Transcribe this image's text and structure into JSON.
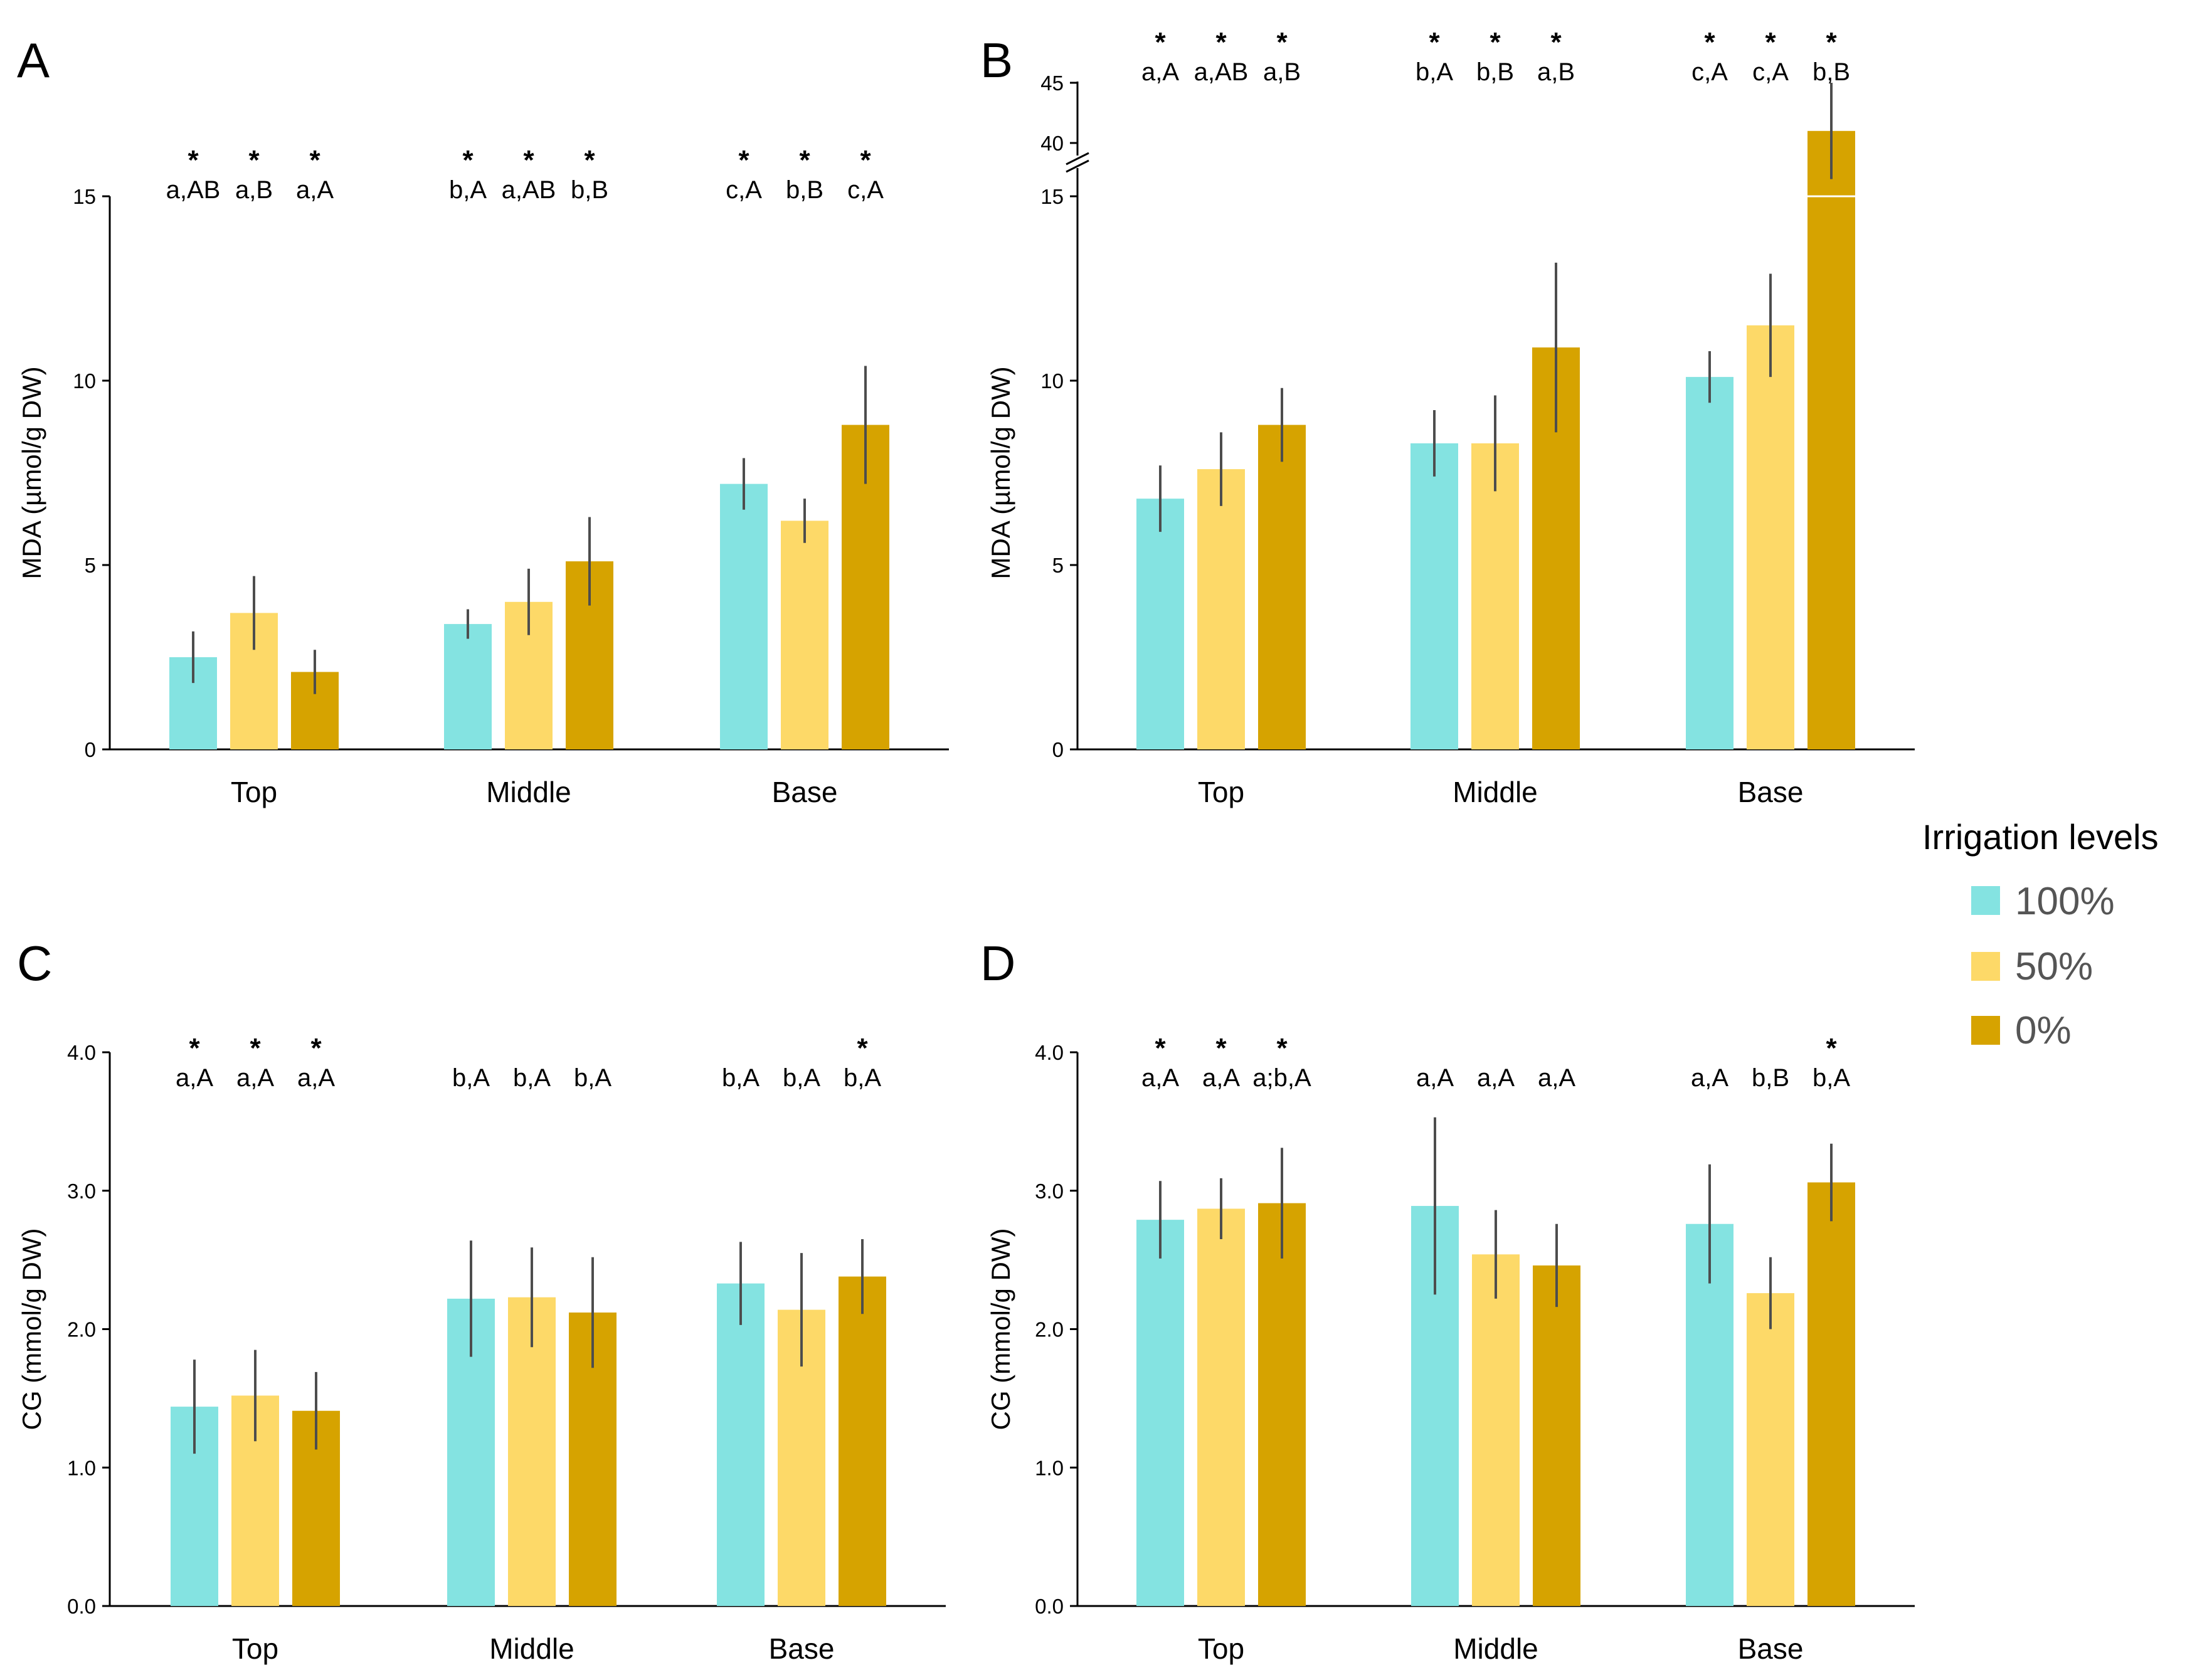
{
  "colors": {
    "c100": "#84e3e1",
    "c50": "#fdd968",
    "c0": "#d6a300",
    "axis": "#000000",
    "errorbar": "#4d4d4d"
  },
  "legend": {
    "title": "Irrigation levels",
    "items": [
      {
        "label": "100%",
        "color": "#84e3e1"
      },
      {
        "label": "50%",
        "color": "#fdd968"
      },
      {
        "label": "0%",
        "color": "#d6a300"
      }
    ]
  },
  "chart_data": [
    {
      "panel": "A",
      "type": "bar",
      "ylabel": "MDA (µmol/g DW)",
      "ylim": [
        0,
        15
      ],
      "yticks": [
        "0",
        "5",
        "10",
        "15"
      ],
      "ytick_values": [
        0,
        5,
        10,
        15
      ],
      "categories": [
        "Top",
        "Middle",
        "Base"
      ],
      "series": [
        {
          "name": "100%",
          "values": [
            2.5,
            3.4,
            7.2
          ],
          "errors": [
            0.7,
            0.4,
            0.7
          ]
        },
        {
          "name": "50%",
          "values": [
            3.7,
            4.0,
            6.2
          ],
          "errors": [
            1.0,
            0.9,
            0.6
          ]
        },
        {
          "name": "0%",
          "values": [
            2.1,
            5.1,
            8.8
          ],
          "errors": [
            0.6,
            1.2,
            1.6
          ]
        }
      ],
      "letters": [
        [
          "a,AB",
          "a,B",
          "a,A"
        ],
        [
          "b,A",
          "a,AB",
          "b,B"
        ],
        [
          "c,A",
          "b,B",
          "c,A"
        ]
      ],
      "stars": [
        [
          true,
          true,
          true
        ],
        [
          true,
          true,
          true
        ],
        [
          true,
          true,
          true
        ]
      ]
    },
    {
      "panel": "B",
      "type": "bar",
      "ylabel": "MDA (µmol/g DW)",
      "ylim": [
        0,
        15
      ],
      "yticks": [
        "0",
        "5",
        "10",
        "15"
      ],
      "ytick_values": [
        0,
        5,
        10,
        15
      ],
      "axis_break": {
        "upper_ticks": [
          "40",
          "45"
        ],
        "upper_tick_values": [
          40,
          45
        ]
      },
      "categories": [
        "Top",
        "Middle",
        "Base"
      ],
      "series": [
        {
          "name": "100%",
          "values": [
            6.8,
            8.3,
            10.1
          ],
          "errors": [
            0.9,
            0.9,
            0.7
          ]
        },
        {
          "name": "50%",
          "values": [
            7.6,
            8.3,
            11.5
          ],
          "errors": [
            1.0,
            1.3,
            1.4
          ]
        },
        {
          "name": "0%",
          "values": [
            8.8,
            10.9,
            41.0
          ],
          "errors": [
            1.0,
            2.3,
            4.0
          ]
        }
      ],
      "letters": [
        [
          "a,A",
          "a,AB",
          "a,B"
        ],
        [
          "b,A",
          "b,B",
          "a,B"
        ],
        [
          "c,A",
          "c,A",
          "b,B"
        ]
      ],
      "stars": [
        [
          true,
          true,
          true
        ],
        [
          true,
          true,
          true
        ],
        [
          true,
          true,
          true
        ]
      ]
    },
    {
      "panel": "C",
      "type": "bar",
      "ylabel": "CG (mmol/g DW)",
      "ylim": [
        0,
        4
      ],
      "yticks": [
        "0.0",
        "1.0",
        "2.0",
        "3.0",
        "4.0"
      ],
      "ytick_values": [
        0,
        1,
        2,
        3,
        4
      ],
      "categories": [
        "Top",
        "Middle",
        "Base"
      ],
      "series": [
        {
          "name": "100%",
          "values": [
            1.44,
            2.22,
            2.33
          ],
          "errors": [
            0.34,
            0.42,
            0.3
          ]
        },
        {
          "name": "50%",
          "values": [
            1.52,
            2.23,
            2.14
          ],
          "errors": [
            0.33,
            0.36,
            0.41
          ]
        },
        {
          "name": "0%",
          "values": [
            1.41,
            2.12,
            2.38
          ],
          "errors": [
            0.28,
            0.4,
            0.27
          ]
        }
      ],
      "letters": [
        [
          "a,A",
          "a,A",
          "a,A"
        ],
        [
          "b,A",
          "b,A",
          "b,A"
        ],
        [
          "b,A",
          "b,A",
          "b,A"
        ]
      ],
      "stars": [
        [
          true,
          true,
          true
        ],
        [
          false,
          false,
          false
        ],
        [
          false,
          false,
          true
        ]
      ]
    },
    {
      "panel": "D",
      "type": "bar",
      "ylabel": "CG (mmol/g DW)",
      "ylim": [
        0,
        4
      ],
      "yticks": [
        "0.0",
        "1.0",
        "2.0",
        "3.0",
        "4.0"
      ],
      "ytick_values": [
        0,
        1,
        2,
        3,
        4
      ],
      "categories": [
        "Top",
        "Middle",
        "Base"
      ],
      "series": [
        {
          "name": "100%",
          "values": [
            2.79,
            2.89,
            2.76
          ],
          "errors": [
            0.28,
            0.64,
            0.43
          ]
        },
        {
          "name": "50%",
          "values": [
            2.87,
            2.54,
            2.26
          ],
          "errors": [
            0.22,
            0.32,
            0.26
          ]
        },
        {
          "name": "0%",
          "values": [
            2.91,
            2.46,
            3.06
          ],
          "errors": [
            0.4,
            0.3,
            0.28
          ]
        }
      ],
      "letters": [
        [
          "a,A",
          "a,A",
          "a;b,A"
        ],
        [
          "a,A",
          "a,A",
          "a,A"
        ],
        [
          "a,A",
          "b,B",
          "b,A"
        ]
      ],
      "stars": [
        [
          true,
          true,
          true
        ],
        [
          false,
          false,
          false
        ],
        [
          false,
          false,
          true
        ]
      ]
    }
  ]
}
